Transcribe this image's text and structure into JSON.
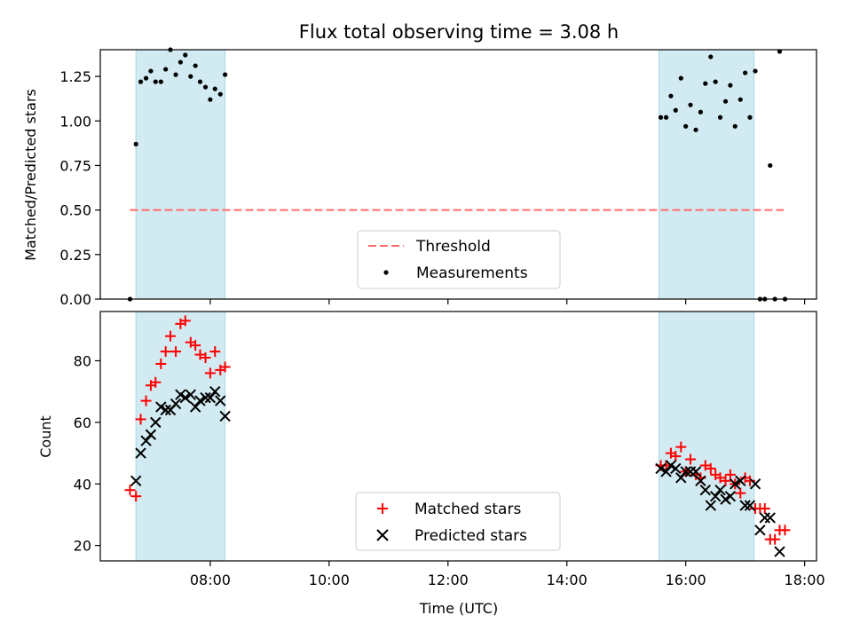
{
  "figure": {
    "title": "Flux total observing time = 3.08 h"
  },
  "chart_data": [
    {
      "type": "scatter",
      "panel": "top",
      "title": "Flux total observing time = 3.08 h",
      "xlabel": "",
      "ylabel": "Matched/Predicted stars",
      "xlim": [
        6.15,
        18.2
      ],
      "ylim": [
        0,
        1.4
      ],
      "yticks": [
        0.0,
        0.25,
        0.5,
        0.75,
        1.0,
        1.25
      ],
      "ytick_labels": [
        "0.00",
        "0.25",
        "0.50",
        "0.75",
        "1.00",
        "1.25"
      ],
      "xticks": [
        8,
        10,
        12,
        14,
        16,
        18
      ],
      "show_xtick_labels": false,
      "shaded_intervals": [
        [
          6.75,
          8.25
        ],
        [
          15.55,
          17.15
        ]
      ],
      "shade_color": "#add8e6",
      "threshold": {
        "name": "Threshold",
        "y": 0.5,
        "x_range": [
          6.65,
          17.65
        ],
        "color": "#ff6b6b"
      },
      "series": [
        {
          "name": "Measurements",
          "color": "#000000",
          "x": [
            6.65,
            6.75,
            6.83,
            6.92,
            7.0,
            7.08,
            7.17,
            7.25,
            7.33,
            7.42,
            7.5,
            7.58,
            7.67,
            7.75,
            7.83,
            7.92,
            8.0,
            8.08,
            8.17,
            8.25,
            15.58,
            15.67,
            15.75,
            15.83,
            15.92,
            16.0,
            16.08,
            16.17,
            16.25,
            16.33,
            16.42,
            16.5,
            16.58,
            16.67,
            16.75,
            16.83,
            16.92,
            17.0,
            17.08,
            17.17,
            17.25,
            17.33,
            17.42,
            17.5,
            17.58,
            17.67
          ],
          "y": [
            0.0,
            0.87,
            1.22,
            1.24,
            1.28,
            1.22,
            1.22,
            1.29,
            1.4,
            1.26,
            1.33,
            1.37,
            1.25,
            1.31,
            1.22,
            1.19,
            1.12,
            1.18,
            1.15,
            1.26,
            1.02,
            1.02,
            1.14,
            1.06,
            1.24,
            0.97,
            1.09,
            0.95,
            1.05,
            1.21,
            1.36,
            1.22,
            1.02,
            1.11,
            1.2,
            0.97,
            1.12,
            1.27,
            1.02,
            1.28,
            0.0,
            0.0,
            0.75,
            0.0,
            1.39,
            0.0
          ]
        }
      ],
      "legend": {
        "location": "lower center",
        "entries": [
          "Threshold",
          "Measurements"
        ]
      }
    },
    {
      "type": "scatter",
      "panel": "bottom",
      "title": "",
      "xlabel": "Time (UTC)",
      "ylabel": "Count",
      "xlim": [
        6.15,
        18.2
      ],
      "ylim": [
        15,
        96
      ],
      "yticks": [
        20,
        40,
        60,
        80
      ],
      "ytick_labels": [
        "20",
        "40",
        "60",
        "80"
      ],
      "xticks": [
        8,
        10,
        12,
        14,
        16,
        18
      ],
      "xtick_labels": [
        "08:00",
        "10:00",
        "12:00",
        "14:00",
        "16:00",
        "18:00"
      ],
      "shaded_intervals": [
        [
          6.75,
          8.25
        ],
        [
          15.55,
          17.15
        ]
      ],
      "shade_color": "#add8e6",
      "series": [
        {
          "name": "Matched stars",
          "marker": "+",
          "color": "#ff0000",
          "x": [
            6.65,
            6.75,
            6.83,
            6.92,
            7.0,
            7.08,
            7.17,
            7.25,
            7.33,
            7.42,
            7.5,
            7.58,
            7.67,
            7.75,
            7.83,
            7.92,
            8.0,
            8.08,
            8.17,
            8.25,
            15.58,
            15.67,
            15.75,
            15.83,
            15.92,
            16.0,
            16.08,
            16.17,
            16.25,
            16.33,
            16.42,
            16.5,
            16.58,
            16.67,
            16.75,
            16.83,
            16.92,
            17.0,
            17.08,
            17.17,
            17.25,
            17.33,
            17.42,
            17.5,
            17.58,
            17.67
          ],
          "y": [
            38,
            36,
            61,
            67,
            72,
            73,
            79,
            83,
            88,
            83,
            92,
            93,
            86,
            85,
            82,
            81,
            76,
            83,
            77,
            78,
            46,
            46,
            50,
            49,
            52,
            44,
            48,
            43,
            42,
            46,
            45,
            43,
            42,
            41,
            43,
            40,
            37,
            42,
            41,
            32,
            32,
            32,
            22,
            22,
            25,
            25
          ]
        },
        {
          "name": "Predicted stars",
          "marker": "x",
          "color": "#000000",
          "x": [
            6.75,
            6.83,
            6.92,
            7.0,
            7.08,
            7.17,
            7.25,
            7.33,
            7.42,
            7.5,
            7.58,
            7.67,
            7.75,
            7.83,
            7.92,
            8.0,
            8.08,
            8.17,
            8.25,
            15.58,
            15.67,
            15.75,
            15.83,
            15.92,
            16.0,
            16.08,
            16.17,
            16.25,
            16.33,
            16.42,
            16.5,
            16.58,
            16.67,
            16.75,
            16.83,
            16.92,
            17.0,
            17.08,
            17.17,
            17.25,
            17.33,
            17.42,
            17.58
          ],
          "y": [
            41,
            50,
            54,
            56,
            60,
            65,
            64,
            64,
            66,
            69,
            68,
            69,
            65,
            67,
            68,
            68,
            70,
            67,
            62,
            45,
            44,
            46,
            45,
            42,
            44,
            44,
            44,
            41,
            38,
            33,
            36,
            38,
            35,
            36,
            40,
            41,
            33,
            33,
            40,
            25,
            29,
            29,
            18
          ]
        }
      ],
      "legend": {
        "location": "lower center",
        "entries": [
          "Matched stars",
          "Predicted stars"
        ]
      }
    }
  ]
}
